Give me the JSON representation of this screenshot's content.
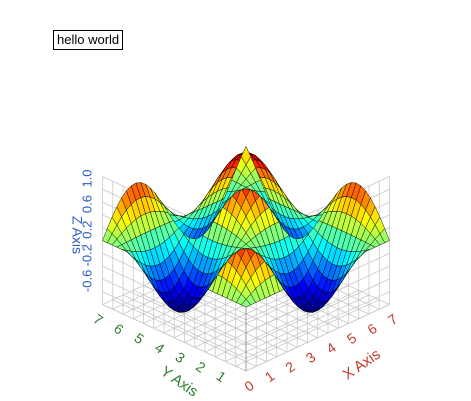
{
  "chart_data": {
    "type": "surface3d",
    "title_box": "hello world",
    "xlabel": "X Axis",
    "ylabel": "Y Axis",
    "zlabel": "Z Axis",
    "x_ticks": [
      "0",
      "1",
      "2",
      "3",
      "4",
      "5",
      "6",
      "7"
    ],
    "y_ticks": [
      "1",
      "2",
      "3",
      "4",
      "5",
      "6",
      "7"
    ],
    "z_ticks": [
      "1.0",
      "0.6",
      "0.2",
      "-0.2",
      "-0.6"
    ],
    "xlim": [
      0,
      7
    ],
    "ylim": [
      0,
      7
    ],
    "zlim": [
      -1,
      1
    ],
    "grid": true,
    "surface": "z = sin(x) * sin(y)",
    "colormap": "jet",
    "colors": {
      "x_axis": "#c0392b",
      "y_axis": "#2e7d32",
      "z_axis": "#2a5cc4",
      "grid": "#c8c8c8",
      "mesh": "#000000"
    }
  }
}
